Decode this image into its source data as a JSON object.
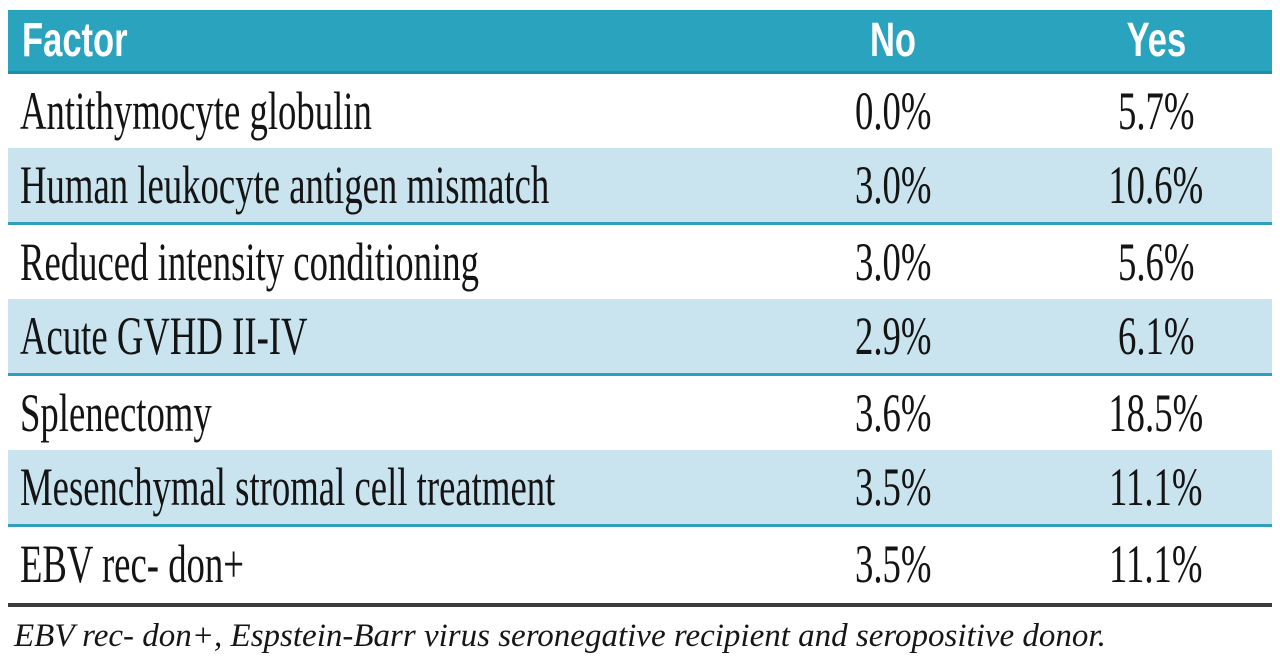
{
  "table": {
    "columns": [
      "Factor",
      "No",
      "Yes"
    ],
    "rows": [
      {
        "factor": "Antithymocyte globulin",
        "no": "0.0%",
        "yes": "5.7%"
      },
      {
        "factor": "Human leukocyte antigen mismatch",
        "no": "3.0%",
        "yes": "10.6%"
      },
      {
        "factor": "Reduced intensity conditioning",
        "no": "3.0%",
        "yes": "5.6%"
      },
      {
        "factor": "Acute GVHD II-IV",
        "no": "2.9%",
        "yes": "6.1%"
      },
      {
        "factor": "Splenectomy",
        "no": "3.6%",
        "yes": "18.5%"
      },
      {
        "factor": "Mesenchymal stromal cell treatment",
        "no": "3.5%",
        "yes": "11.1%"
      },
      {
        "factor": "EBV rec- don+",
        "no": "3.5%",
        "yes": "11.1%"
      }
    ]
  },
  "footnote": "EBV rec- don+, Espstein-Barr virus seronegative recipient and seropositive donor.",
  "colors": {
    "header_background": "#2AA3BE",
    "header_bottom_edge": "#1B8EA9",
    "alt_row_background": "#C9E4EF",
    "alt_row_border": "#2E9FBD",
    "divider": "#3C3C3C",
    "text": "#141414",
    "header_text": "#FFFFFF"
  },
  "chart_data": {
    "type": "table",
    "title": "",
    "columns": [
      "Factor",
      "No",
      "Yes"
    ],
    "rows": [
      [
        "Antithymocyte globulin",
        "0.0%",
        "5.7%"
      ],
      [
        "Human leukocyte antigen mismatch",
        "3.0%",
        "10.6%"
      ],
      [
        "Reduced intensity conditioning",
        "3.0%",
        "5.6%"
      ],
      [
        "Acute GVHD II-IV",
        "2.9%",
        "6.1%"
      ],
      [
        "Splenectomy",
        "3.6%",
        "18.5%"
      ],
      [
        "Mesenchymal stromal cell treatment",
        "3.5%",
        "11.1%"
      ],
      [
        "EBV rec- don+",
        "3.5%",
        "11.1%"
      ]
    ],
    "values_no": [
      0.0,
      3.0,
      3.0,
      2.9,
      3.6,
      3.5,
      3.5
    ],
    "values_yes": [
      5.7,
      10.6,
      5.6,
      6.1,
      18.5,
      11.1,
      11.1
    ],
    "units": "percent",
    "footnote": "EBV rec- don+, Espstein-Barr virus seronegative recipient and seropositive donor.",
    "layout": {
      "alternating_row_shading": true,
      "header_style": "teal-banner"
    }
  }
}
